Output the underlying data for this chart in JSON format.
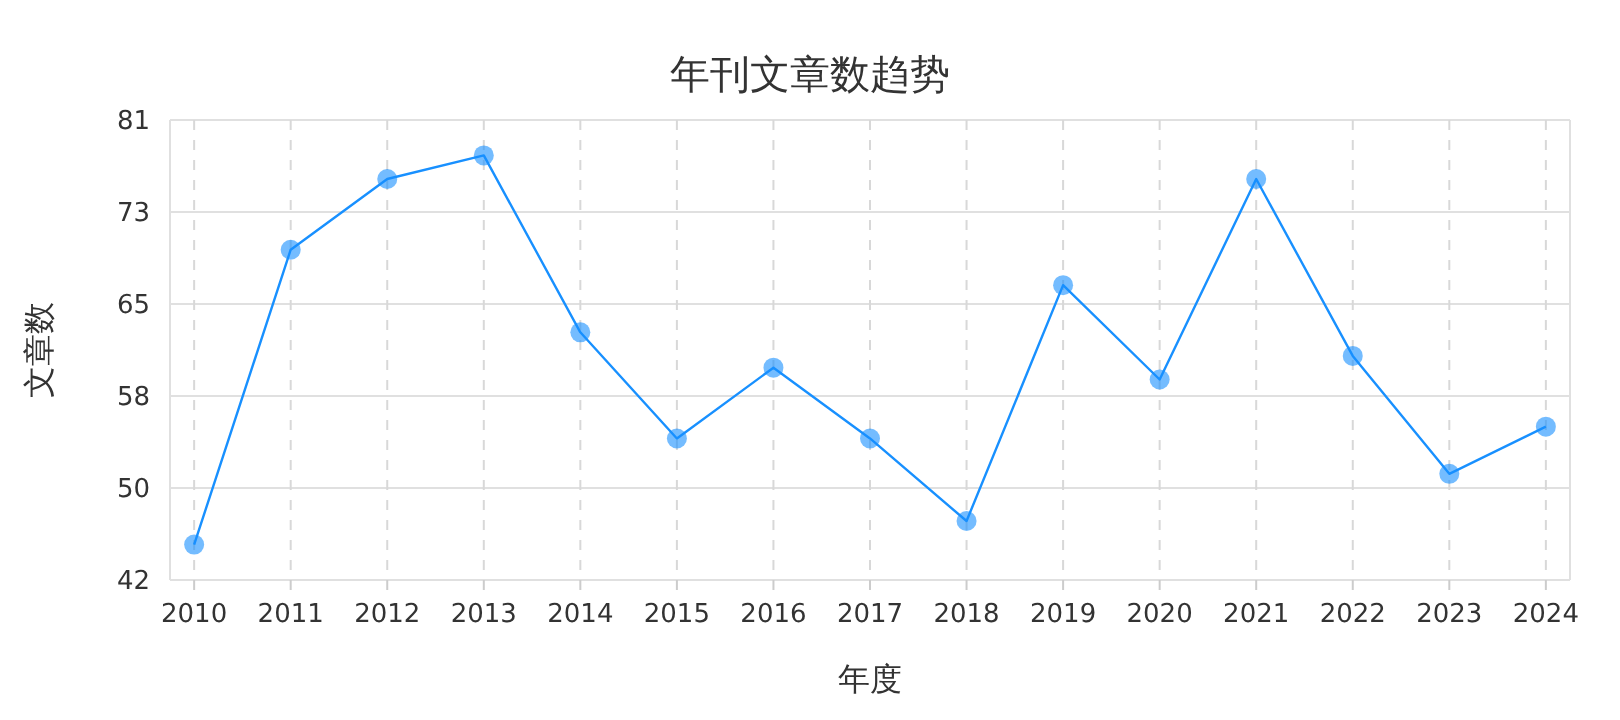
{
  "chart_data": {
    "type": "line",
    "title": "年刊文章数趋势",
    "xlabel": "年度",
    "ylabel": "文章数",
    "categories": [
      "2010",
      "2011",
      "2012",
      "2013",
      "2014",
      "2015",
      "2016",
      "2017",
      "2018",
      "2019",
      "2020",
      "2021",
      "2022",
      "2023",
      "2024"
    ],
    "series": [
      {
        "color": "#1890ff",
        "values": [
          45,
          70,
          76,
          78,
          63,
          54,
          60,
          54,
          47,
          67,
          59,
          76,
          61,
          51,
          55
        ]
      }
    ],
    "ylim": [
      42,
      81
    ],
    "yticks": [
      42,
      {
        "value": 49.8,
        "label": "50"
      },
      {
        "value": 57.6,
        "label": "58"
      },
      {
        "value": 65.4,
        "label": "65"
      },
      {
        "value": 73.2,
        "label": "73"
      },
      81
    ],
    "grid": true,
    "marker": "circle",
    "line_style": "solid"
  }
}
